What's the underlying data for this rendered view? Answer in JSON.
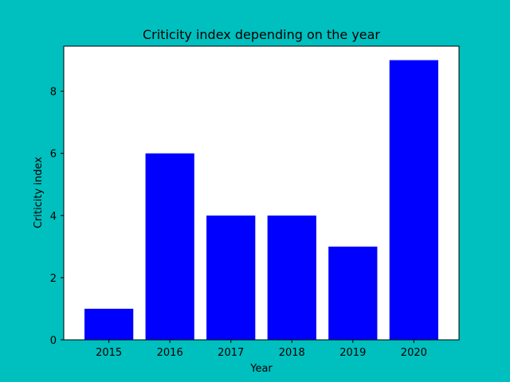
{
  "colors": {
    "figure_background": "#00bfbf",
    "plot_background": "#ffffff",
    "bar_fill": "#0000ff",
    "axis_color": "#000000"
  },
  "chart_data": {
    "type": "bar",
    "title": "Criticity index depending on the year",
    "xlabel": "Year",
    "ylabel": "Criticity index",
    "categories": [
      "2015",
      "2016",
      "2017",
      "2018",
      "2019",
      "2020"
    ],
    "values": [
      1,
      6,
      4,
      4,
      3,
      9
    ],
    "ylim": [
      0,
      9.45
    ],
    "yticks": [
      0,
      2,
      4,
      6,
      8
    ],
    "grid": false,
    "legend": false
  }
}
